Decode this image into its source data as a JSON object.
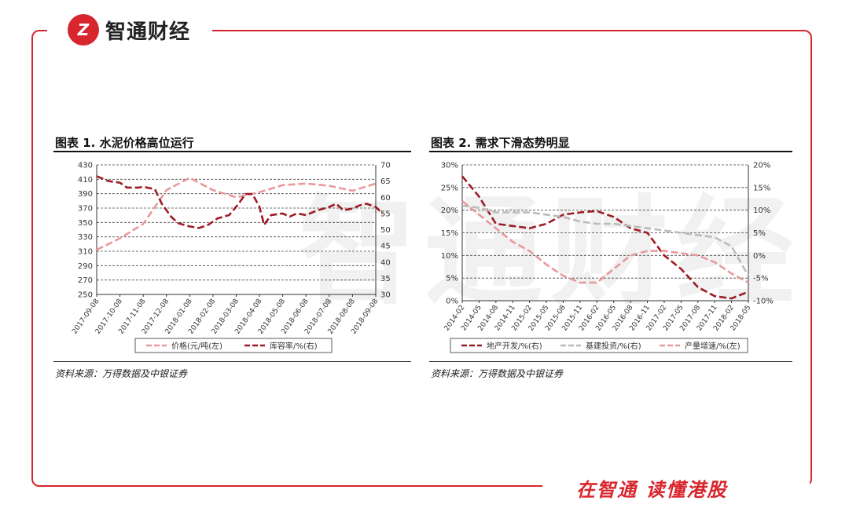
{
  "brand": {
    "logo_mark": "Z",
    "logo_text": "智通财经",
    "slogan": "在智通 读懂港股",
    "watermark": "智通财经",
    "accent_color": "#d7262d"
  },
  "chart_data": [
    {
      "type": "line",
      "title": "图表 1. 水泥价格高位运行",
      "source": "资料来源：万得数据及中银证券",
      "categories": [
        "2017-09-08",
        "2017-10-08",
        "2017-11-08",
        "2017-12-08",
        "2018-01-08",
        "2018-02-08",
        "2018-03-08",
        "2018-04-08",
        "2018-05-08",
        "2018-06-08",
        "2018-07-08",
        "2018-08-08",
        "2018-09-08"
      ],
      "ylim_left": [
        250,
        430
      ],
      "yticks_left": [
        250,
        270,
        290,
        310,
        330,
        350,
        370,
        390,
        410,
        430
      ],
      "ylim_right": [
        30,
        70
      ],
      "yticks_right": [
        30,
        35,
        40,
        45,
        50,
        55,
        60,
        65,
        70
      ],
      "grid": true,
      "legend_position": "bottom",
      "series": [
        {
          "name": "价格(元/吨(左)",
          "axis": "left",
          "color": "#e8999b",
          "style": "dashed",
          "values": [
            312,
            328,
            348,
            395,
            412,
            395,
            385,
            392,
            402,
            404,
            401,
            394,
            404
          ]
        },
        {
          "name": "库容率/%(右)",
          "axis": "right",
          "color": "#9b1c24",
          "style": "dashed",
          "points": [
            [
              0,
              66.5
            ],
            [
              0.5,
              65
            ],
            [
              1,
              64.5
            ],
            [
              1.3,
              63
            ],
            [
              1.8,
              63
            ],
            [
              2,
              63.2
            ],
            [
              2.5,
              62.5
            ],
            [
              2.8,
              58
            ],
            [
              3.2,
              54
            ],
            [
              3.5,
              52
            ],
            [
              4,
              51
            ],
            [
              4.4,
              50.5
            ],
            [
              4.8,
              51.5
            ],
            [
              5.2,
              53.5
            ],
            [
              5.7,
              54.5
            ],
            [
              6.1,
              58
            ],
            [
              6.4,
              61
            ],
            [
              6.7,
              61
            ],
            [
              7,
              57
            ],
            [
              7.2,
              51.5
            ],
            [
              7.5,
              54.5
            ],
            [
              8,
              55
            ],
            [
              8.3,
              54
            ],
            [
              8.6,
              55
            ],
            [
              9,
              54.5
            ],
            [
              9.5,
              56
            ],
            [
              10,
              57
            ],
            [
              10.3,
              58
            ],
            [
              10.6,
              56
            ],
            [
              11,
              56.5
            ],
            [
              11.3,
              57.5
            ],
            [
              11.6,
              58
            ],
            [
              12,
              57
            ],
            [
              12.3,
              55
            ]
          ]
        }
      ]
    },
    {
      "type": "line",
      "title": "图表 2. 需求下滑态势明显",
      "source": "资料来源：万得数据及中银证券",
      "categories": [
        "2014-02",
        "2014-05",
        "2014-08",
        "2014-11",
        "2015-02",
        "2015-05",
        "2015-08",
        "2015-11",
        "2016-02",
        "2016-05",
        "2016-08",
        "2016-11",
        "2017-02",
        "2017-05",
        "2017-08",
        "2017-11",
        "2018-02",
        "2018-05"
      ],
      "ylim_left": [
        0,
        30
      ],
      "yticks_left": [
        "0%",
        "5%",
        "10%",
        "15%",
        "20%",
        "25%",
        "30%"
      ],
      "ylim_right": [
        -10,
        20
      ],
      "yticks_right": [
        "-10%",
        "-5%",
        "0%",
        "5%",
        "10%",
        "15%",
        "20%"
      ],
      "grid": true,
      "legend_position": "bottom",
      "series": [
        {
          "name": "地产开发/%(右)",
          "axis": "right",
          "color": "#9b1c24",
          "style": "dashed",
          "values": [
            17.5,
            13,
            7,
            6.5,
            6,
            7,
            9,
            9.5,
            9.8,
            8.5,
            6,
            5,
            0,
            -3,
            -7,
            -9,
            -9.5,
            -8
          ]
        },
        {
          "name": "基建投资/%(右)",
          "axis": "right",
          "color": "#bbbbbb",
          "style": "dashed",
          "values": [
            11,
            10.5,
            9.5,
            9.5,
            9.5,
            9,
            8.5,
            7.5,
            7,
            7,
            6.5,
            6,
            5.5,
            5,
            4.5,
            4,
            2,
            -4.5
          ]
        },
        {
          "name": "产量增速/%(左)",
          "axis": "left",
          "color": "#e8999b",
          "style": "dashed",
          "values": [
            22,
            19,
            16,
            13,
            11,
            8,
            5.5,
            4,
            4,
            7,
            10,
            11,
            11,
            10.5,
            10,
            8.5,
            6,
            4
          ]
        }
      ]
    }
  ]
}
